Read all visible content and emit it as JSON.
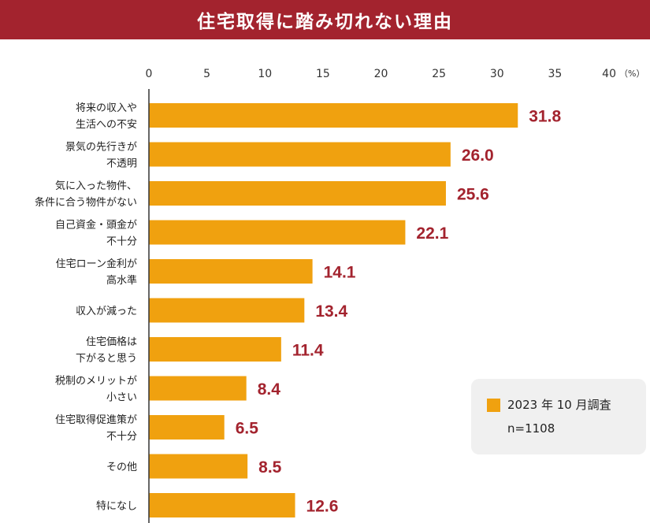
{
  "title": "住宅取得に踏み切れない理由",
  "colors": {
    "title_bg": "#A3232E",
    "bar": "#F0A10F",
    "value_text": "#A3232E",
    "legend_bg": "#F0F0F0"
  },
  "legend": {
    "series_name": "2023 年 10 月調査",
    "sample": "n=1108"
  },
  "chart_data": {
    "type": "bar",
    "orientation": "horizontal",
    "title": "住宅取得に踏み切れない理由",
    "x_unit": "（%）",
    "xlim": [
      0,
      40
    ],
    "x_ticks": [
      0,
      5,
      10,
      15,
      20,
      25,
      30,
      35,
      40
    ],
    "categories": [
      [
        "将来の収入や",
        "生活への不安"
      ],
      [
        "景気の先行きが",
        "不透明"
      ],
      [
        "気に入った物件、",
        "条件に合う物件がない"
      ],
      [
        "自己資金・頭金が",
        "不十分"
      ],
      [
        "住宅ローン金利が",
        "高水準"
      ],
      [
        "収入が減った"
      ],
      [
        "住宅価格は",
        "下がると思う"
      ],
      [
        "税制のメリットが",
        "小さい"
      ],
      [
        "住宅取得促進策が",
        "不十分"
      ],
      [
        "その他"
      ],
      [
        "特になし"
      ]
    ],
    "values": [
      "31.8",
      "26.0",
      "25.6",
      "22.1",
      "14.1",
      "13.4",
      "11.4",
      "8.4",
      "6.5",
      "8.5",
      "12.6"
    ],
    "series": [
      {
        "name": "2023 年 10 月調査",
        "values": [
          31.8,
          26.0,
          25.6,
          22.1,
          14.1,
          13.4,
          11.4,
          8.4,
          6.5,
          8.5,
          12.6
        ]
      }
    ],
    "grid": false,
    "legend_position": "bottom-right"
  }
}
